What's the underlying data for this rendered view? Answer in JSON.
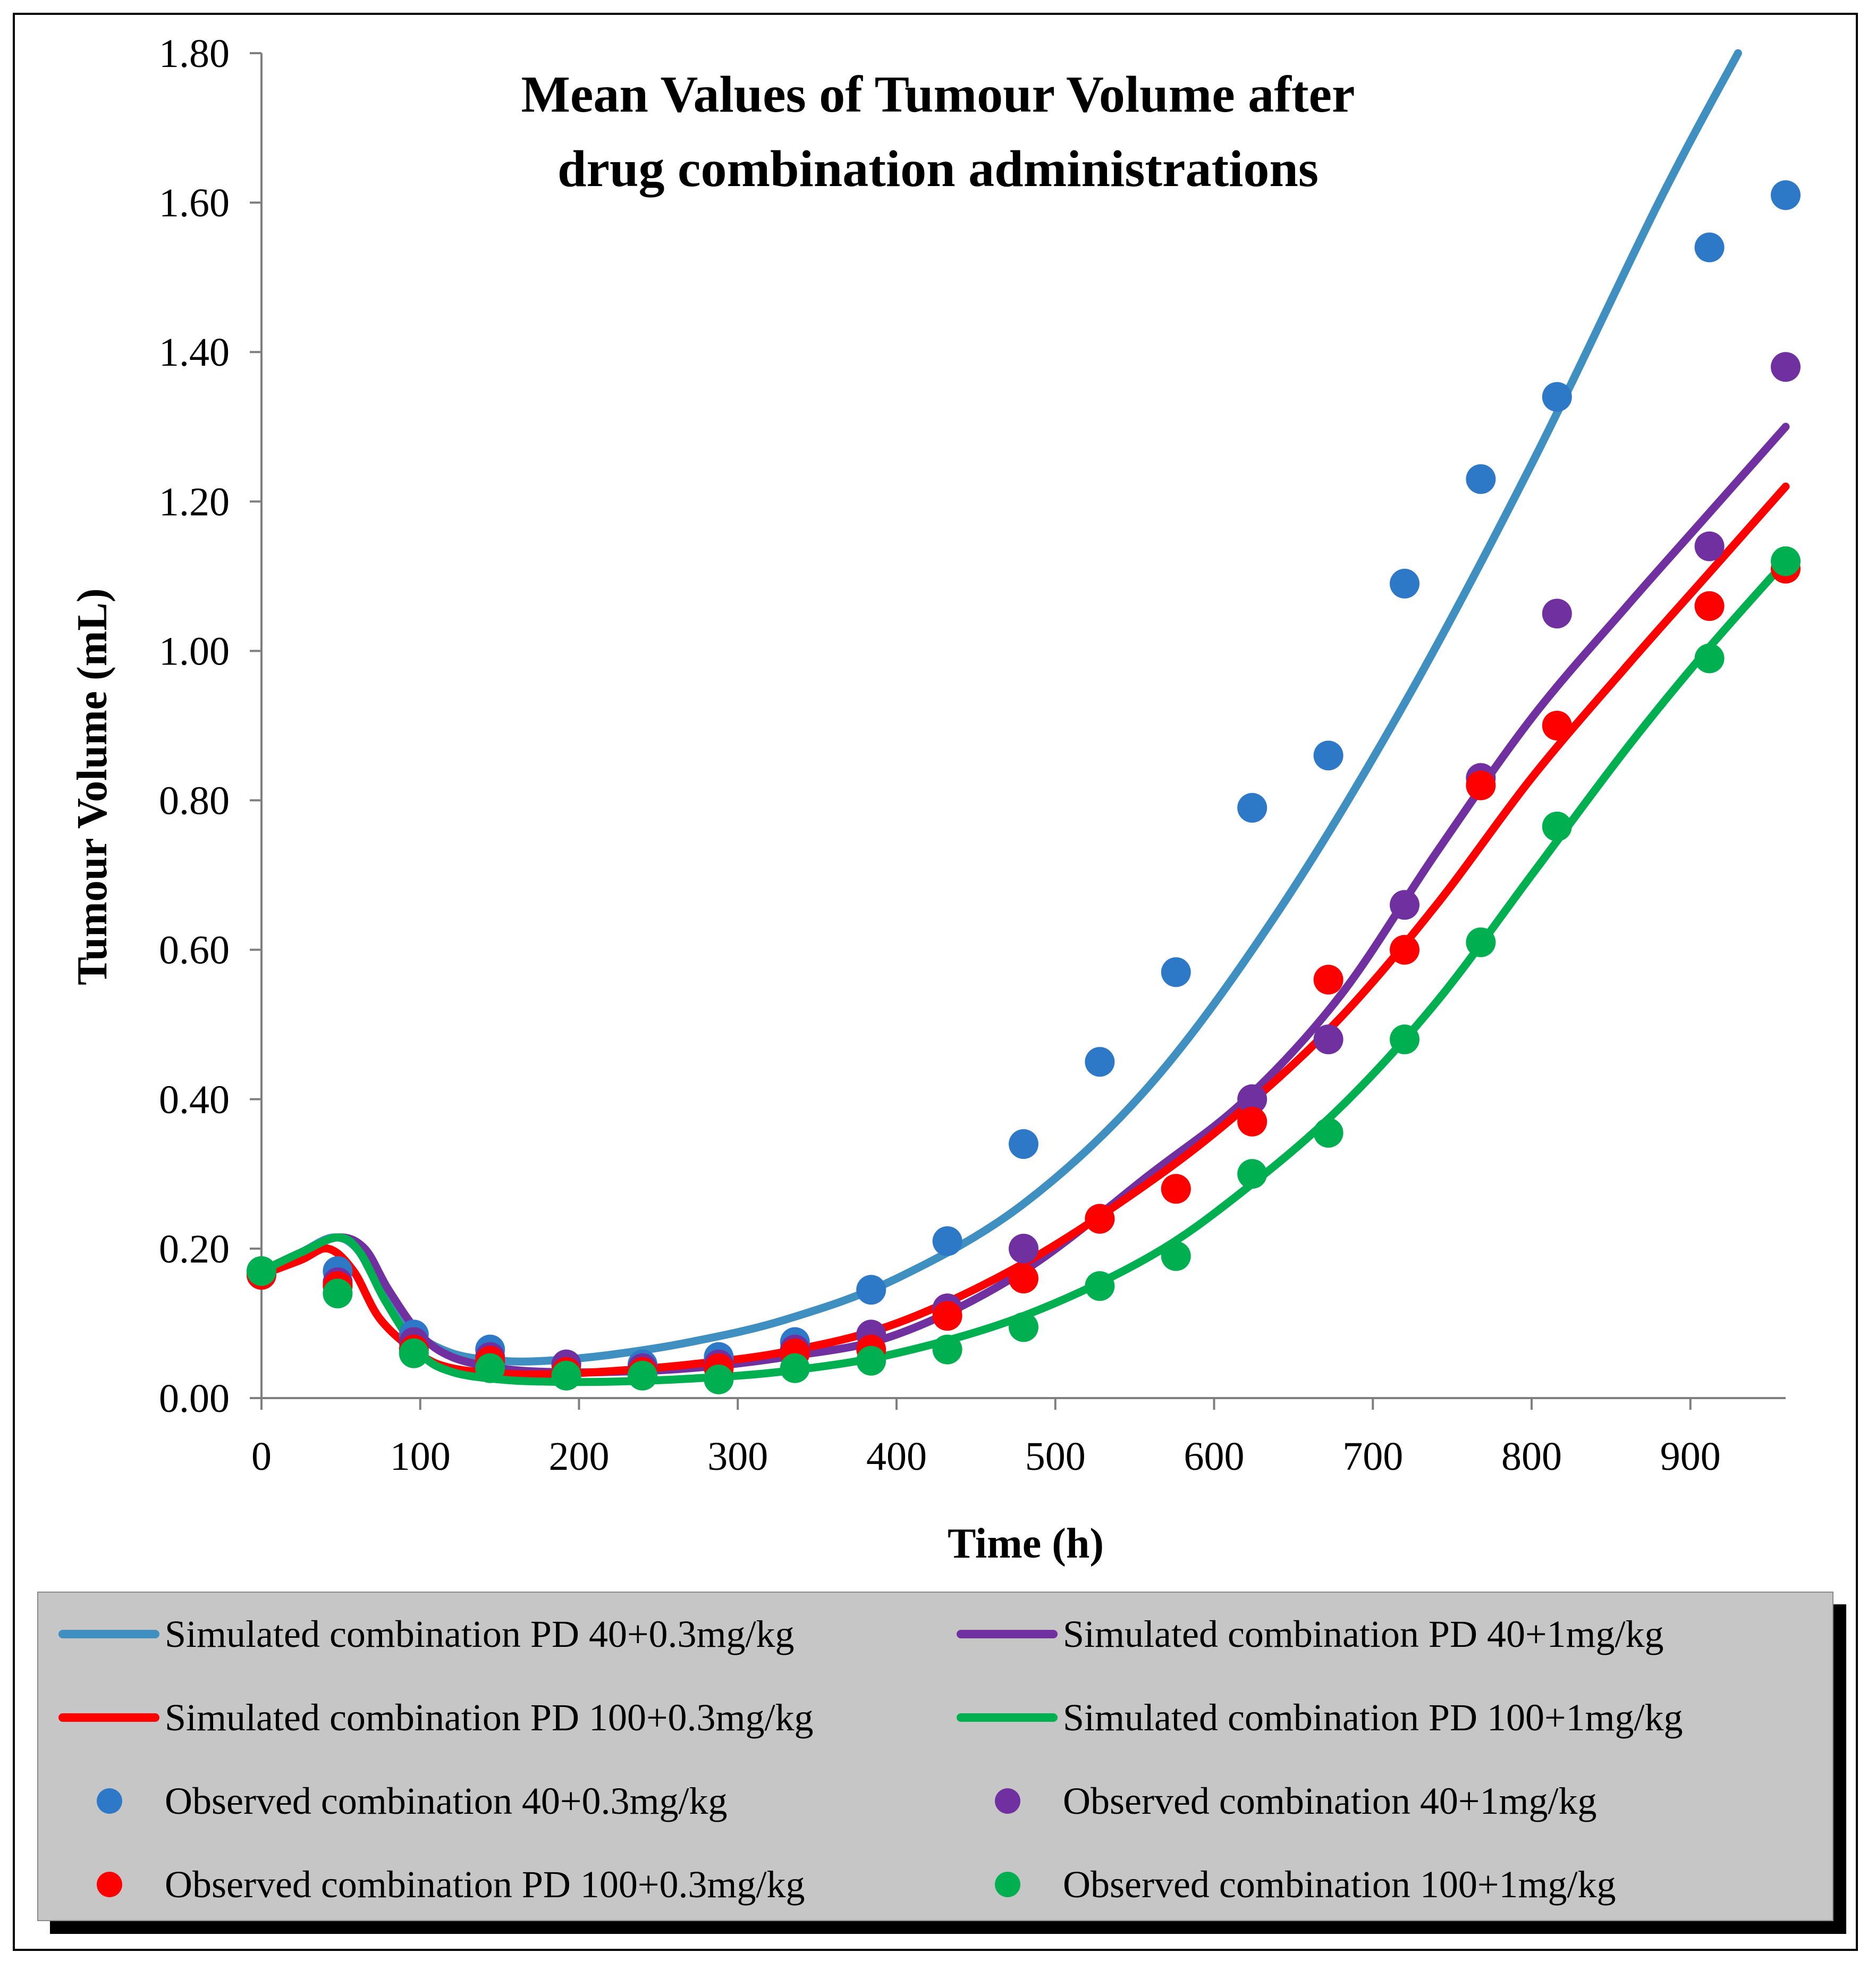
{
  "chart_data": {
    "type": "line",
    "title_lines": [
      "Mean Values of Tumour Volume after",
      "drug combination administrations"
    ],
    "xlabel": "Time (h)",
    "ylabel": "Tumour Volume (mL)",
    "xlim": [
      0,
      960
    ],
    "ylim": [
      0,
      1.8
    ],
    "x_ticks": [
      "0",
      "100",
      "200",
      "300",
      "400",
      "500",
      "600",
      "700",
      "800",
      "900"
    ],
    "y_ticks": [
      "0.00",
      "0.20",
      "0.40",
      "0.60",
      "0.80",
      "1.00",
      "1.20",
      "1.40",
      "1.60",
      "1.80"
    ],
    "grid": false,
    "legend_position": "bottom",
    "simulated": [
      {
        "name": "Simulated combination PD 40+0.3mg/kg",
        "color": "#3f8fc0",
        "x": [
          0,
          25,
          45,
          60,
          75,
          95,
          120,
          150,
          180,
          220,
          270,
          330,
          400,
          480,
          560,
          640,
          720,
          800,
          880,
          930
        ],
        "y": [
          0.17,
          0.195,
          0.215,
          0.2,
          0.145,
          0.09,
          0.06,
          0.05,
          0.05,
          0.058,
          0.075,
          0.105,
          0.16,
          0.26,
          0.42,
          0.65,
          0.93,
          1.25,
          1.6,
          1.8
        ]
      },
      {
        "name": "Simulated combination PD 40+1mg/kg",
        "color": "#7030a0",
        "x": [
          0,
          25,
          48,
          65,
          80,
          100,
          120,
          150,
          180,
          220,
          270,
          330,
          400,
          480,
          560,
          620,
          680,
          740,
          800,
          860,
          910,
          960
        ],
        "y": [
          0.17,
          0.195,
          0.215,
          0.2,
          0.145,
          0.085,
          0.055,
          0.04,
          0.035,
          0.035,
          0.04,
          0.055,
          0.085,
          0.17,
          0.3,
          0.4,
          0.54,
          0.73,
          0.91,
          1.06,
          1.18,
          1.3
        ]
      },
      {
        "name": "Simulated combination PD 100+0.3mg/kg",
        "color": "#ff0000",
        "x": [
          0,
          25,
          42,
          58,
          75,
          100,
          120,
          150,
          180,
          220,
          270,
          330,
          400,
          480,
          560,
          620,
          680,
          740,
          800,
          860,
          910,
          960
        ],
        "y": [
          0.165,
          0.185,
          0.2,
          0.17,
          0.105,
          0.058,
          0.04,
          0.033,
          0.032,
          0.036,
          0.045,
          0.062,
          0.1,
          0.18,
          0.29,
          0.39,
          0.51,
          0.66,
          0.83,
          0.98,
          1.1,
          1.22
        ]
      },
      {
        "name": "Simulated combination PD 100+1mg/kg",
        "color": "#00b050",
        "x": [
          0,
          25,
          48,
          62,
          78,
          100,
          120,
          150,
          180,
          220,
          270,
          330,
          400,
          480,
          560,
          620,
          680,
          740,
          800,
          860,
          910,
          960
        ],
        "y": [
          0.17,
          0.195,
          0.215,
          0.195,
          0.13,
          0.06,
          0.035,
          0.025,
          0.022,
          0.022,
          0.026,
          0.036,
          0.06,
          0.11,
          0.19,
          0.28,
          0.39,
          0.53,
          0.7,
          0.87,
          1.0,
          1.12
        ]
      }
    ],
    "observed": [
      {
        "name": "Observed combination 40+0.3mg/kg",
        "color": "#2e78c8",
        "x": [
          0,
          48,
          96,
          144,
          192,
          240,
          288,
          336,
          384,
          432,
          480,
          528,
          576,
          624,
          672,
          720,
          768,
          816,
          912,
          960
        ],
        "y": [
          0.17,
          0.17,
          0.085,
          0.065,
          0.045,
          0.045,
          0.055,
          0.075,
          0.145,
          0.21,
          0.34,
          0.45,
          0.57,
          0.79,
          0.86,
          1.09,
          1.23,
          1.34,
          1.54,
          1.61
        ]
      },
      {
        "name": "Observed combination 40+1mg/kg",
        "color": "#7030a0",
        "x": [
          0,
          48,
          96,
          144,
          192,
          240,
          288,
          336,
          384,
          432,
          480,
          528,
          576,
          624,
          672,
          720,
          768,
          816,
          912,
          960
        ],
        "y": [
          0.165,
          0.155,
          0.075,
          0.055,
          0.045,
          0.04,
          0.045,
          0.065,
          0.085,
          0.12,
          0.2,
          0.24,
          0.28,
          0.4,
          0.48,
          0.66,
          0.83,
          1.05,
          1.14,
          1.38
        ]
      },
      {
        "name": "Observed combination PD 100+0.3mg/kg",
        "color": "#ff0000",
        "x": [
          0,
          48,
          96,
          144,
          192,
          240,
          288,
          336,
          384,
          432,
          480,
          528,
          576,
          624,
          672,
          720,
          768,
          816,
          912,
          960
        ],
        "y": [
          0.165,
          0.15,
          0.065,
          0.05,
          0.035,
          0.035,
          0.04,
          0.06,
          0.065,
          0.11,
          0.16,
          0.24,
          0.28,
          0.37,
          0.56,
          0.6,
          0.82,
          0.9,
          1.06,
          1.11
        ]
      },
      {
        "name": "Observed combination 100+1mg/kg",
        "color": "#00b050",
        "x": [
          0,
          48,
          96,
          144,
          192,
          240,
          288,
          336,
          384,
          432,
          480,
          528,
          576,
          624,
          672,
          720,
          768,
          816,
          912,
          960
        ],
        "y": [
          0.17,
          0.14,
          0.06,
          0.04,
          0.03,
          0.03,
          0.025,
          0.04,
          0.05,
          0.065,
          0.095,
          0.15,
          0.19,
          0.3,
          0.355,
          0.48,
          0.61,
          0.765,
          0.99,
          1.12
        ]
      }
    ]
  }
}
